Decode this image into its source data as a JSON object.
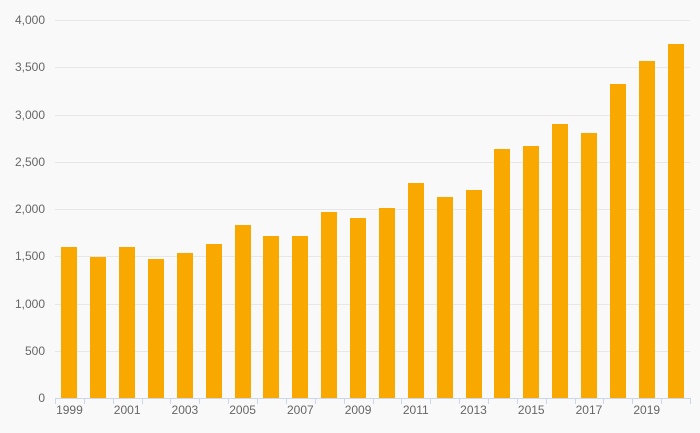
{
  "chart": {
    "background_color": "#f9f9f9",
    "grid_color": "#e7e7e7",
    "axis_color": "#ccd6eb",
    "label_color": "#666666",
    "bar_color": "#F9A800"
  },
  "chart_data": {
    "type": "bar",
    "title": "",
    "xlabel": "",
    "ylabel": "",
    "categories": [
      "1999",
      "2000",
      "2001",
      "2002",
      "2003",
      "2004",
      "2005",
      "2006",
      "2007",
      "2008",
      "2009",
      "2010",
      "2011",
      "2012",
      "2013",
      "2014",
      "2015",
      "2016",
      "2017",
      "2018",
      "2019",
      "2020"
    ],
    "values": [
      1600,
      1490,
      1600,
      1470,
      1530,
      1630,
      1830,
      1710,
      1710,
      1970,
      1900,
      2010,
      2280,
      2130,
      2200,
      2640,
      2670,
      2900,
      2800,
      3320,
      3570,
      3750
    ],
    "ylim": [
      0,
      4000
    ],
    "y_tick_step": 500,
    "y_tick_labels": [
      "0",
      "500",
      "1,000",
      "1,500",
      "2,000",
      "2,500",
      "3,000",
      "3,500",
      "4,000"
    ],
    "x_tick_labels": [
      "1999",
      "2001",
      "2003",
      "2005",
      "2007",
      "2009",
      "2011",
      "2013",
      "2015",
      "2017",
      "2019"
    ],
    "grid": true,
    "legend": false
  }
}
